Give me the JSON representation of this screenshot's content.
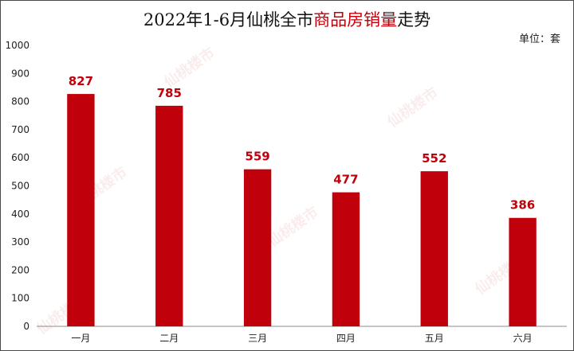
{
  "title": {
    "before": "2022年1-6月仙桃全市",
    "highlight": "商品房销量",
    "after": "走势"
  },
  "unit_label": "单位：套",
  "watermark": "仙桃楼市",
  "colors": {
    "bar": "#c0000b",
    "label": "#c0000b",
    "highlight": "#c0000b"
  },
  "chart_data": {
    "type": "bar",
    "categories": [
      "一月",
      "二月",
      "三月",
      "四月",
      "五月",
      "六月"
    ],
    "values": [
      827,
      785,
      559,
      477,
      552,
      386
    ],
    "ylim": [
      0,
      1000
    ],
    "yticks": [
      0,
      100,
      200,
      300,
      400,
      500,
      600,
      700,
      800,
      900,
      1000
    ],
    "grid": false,
    "legend": "none"
  }
}
